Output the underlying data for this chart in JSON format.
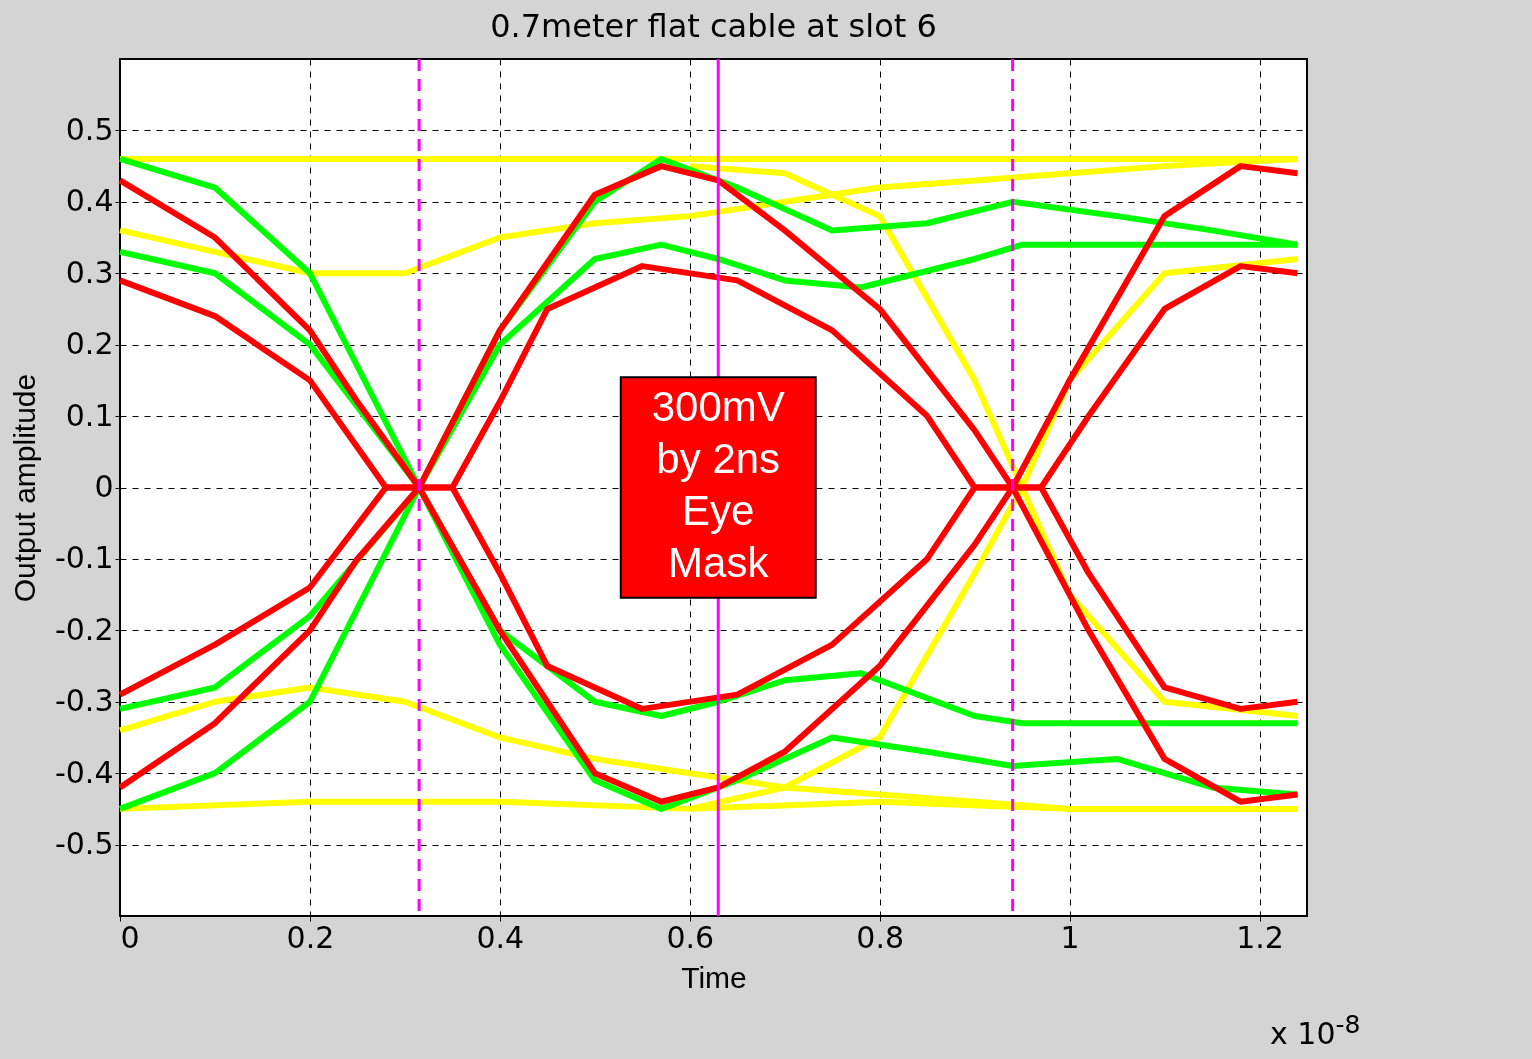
{
  "chart_data": {
    "type": "line",
    "title": "0.7meter flat cable at slot 6",
    "xlabel": "Time",
    "ylabel": "Output amplitude",
    "xlim": [
      0,
      1.25
    ],
    "xticks": [
      0,
      0.2,
      0.4,
      0.6,
      0.8,
      1,
      1.2
    ],
    "ylim": [
      -0.6,
      0.6
    ],
    "yticks": [
      -0.5,
      -0.4,
      -0.3,
      -0.2,
      -0.1,
      0,
      0.1,
      0.2,
      0.3,
      0.4,
      0.5
    ],
    "grid": true,
    "legend": false,
    "marker": "none",
    "line_style": "solid",
    "series": [
      {
        "color": "#ffff00",
        "x": [
          0,
          0.2,
          0.4,
          0.6,
          0.8,
          1.0,
          1.24
        ],
        "values": [
          0.46,
          0.46,
          0.46,
          0.46,
          0.46,
          0.46,
          0.46
        ]
      },
      {
        "color": "#ffff00",
        "x": [
          0,
          0.2,
          0.4,
          0.6,
          0.8,
          1.0,
          1.24
        ],
        "values": [
          -0.45,
          -0.44,
          -0.44,
          -0.45,
          -0.44,
          -0.45,
          -0.45
        ]
      },
      {
        "color": "#ffff00",
        "x": [
          0,
          0.1,
          0.2,
          0.3,
          0.4,
          0.5,
          0.6,
          0.7,
          0.8,
          0.9,
          1.0,
          1.1,
          1.24
        ],
        "values": [
          0.36,
          0.33,
          0.3,
          0.3,
          0.35,
          0.37,
          0.38,
          0.4,
          0.42,
          0.43,
          0.44,
          0.45,
          0.46
        ]
      },
      {
        "color": "#ffff00",
        "x": [
          0,
          0.1,
          0.2,
          0.3,
          0.4,
          0.5,
          0.6,
          0.7,
          0.8,
          0.9,
          1.0,
          1.1,
          1.24
        ],
        "values": [
          -0.34,
          -0.3,
          -0.28,
          -0.3,
          -0.35,
          -0.38,
          -0.4,
          -0.42,
          -0.43,
          -0.44,
          -0.45,
          -0.45,
          -0.45
        ]
      },
      {
        "color": "#ffff00",
        "x": [
          0.6,
          0.7,
          0.8,
          0.9,
          0.95,
          1.0,
          1.1,
          1.24
        ],
        "values": [
          0.45,
          0.44,
          0.38,
          0.15,
          0,
          -0.15,
          -0.3,
          -0.32
        ]
      },
      {
        "color": "#ffff00",
        "x": [
          0.6,
          0.7,
          0.8,
          0.9,
          0.95,
          1.0,
          1.1,
          1.24
        ],
        "values": [
          -0.45,
          -0.42,
          -0.35,
          -0.12,
          0,
          0.15,
          0.3,
          0.32
        ]
      },
      {
        "color": "#00ff00",
        "x": [
          0,
          0.1,
          0.2,
          0.315,
          0.4,
          0.5,
          0.57,
          0.63,
          0.7,
          0.78,
          0.9,
          0.95,
          1.1,
          1.24
        ],
        "values": [
          0.46,
          0.42,
          0.3,
          0,
          -0.2,
          -0.3,
          -0.32,
          -0.3,
          -0.27,
          -0.26,
          -0.32,
          -0.33,
          -0.33,
          -0.33
        ]
      },
      {
        "color": "#00ff00",
        "x": [
          0,
          0.1,
          0.2,
          0.315,
          0.4,
          0.5,
          0.57,
          0.63,
          0.7,
          0.78,
          0.9,
          0.95,
          1.1,
          1.24
        ],
        "values": [
          -0.45,
          -0.4,
          -0.3,
          0,
          0.2,
          0.32,
          0.34,
          0.32,
          0.29,
          0.28,
          0.32,
          0.34,
          0.34,
          0.34
        ]
      },
      {
        "color": "#00ff00",
        "x": [
          0,
          0.1,
          0.2,
          0.315,
          0.4,
          0.5,
          0.57,
          0.65,
          0.75,
          0.85,
          0.94,
          1.05,
          1.15,
          1.24
        ],
        "values": [
          0.33,
          0.3,
          0.2,
          0,
          -0.22,
          -0.41,
          -0.45,
          -0.41,
          -0.35,
          -0.37,
          -0.39,
          -0.38,
          -0.42,
          -0.43
        ]
      },
      {
        "color": "#00ff00",
        "x": [
          0,
          0.1,
          0.2,
          0.315,
          0.4,
          0.5,
          0.57,
          0.65,
          0.75,
          0.85,
          0.94,
          1.05,
          1.15,
          1.24
        ],
        "values": [
          -0.31,
          -0.28,
          -0.18,
          0,
          0.22,
          0.4,
          0.46,
          0.42,
          0.36,
          0.37,
          0.4,
          0.38,
          0.36,
          0.34
        ]
      },
      {
        "color": "#ff0000",
        "x": [
          0,
          0.1,
          0.2,
          0.25,
          0.315,
          0.4,
          0.5,
          0.57,
          0.63,
          0.7,
          0.8,
          0.9,
          0.94,
          1.0,
          1.1,
          1.18,
          1.24
        ],
        "values": [
          0.43,
          0.35,
          0.22,
          0.12,
          0,
          -0.2,
          -0.4,
          -0.44,
          -0.42,
          -0.37,
          -0.25,
          -0.08,
          0,
          0.15,
          0.38,
          0.45,
          0.44
        ]
      },
      {
        "color": "#ff0000",
        "x": [
          0,
          0.1,
          0.2,
          0.25,
          0.315,
          0.4,
          0.5,
          0.57,
          0.63,
          0.7,
          0.8,
          0.9,
          0.94,
          1.02,
          1.1,
          1.18,
          1.24
        ],
        "values": [
          -0.42,
          -0.33,
          -0.2,
          -0.1,
          0,
          0.22,
          0.41,
          0.45,
          0.43,
          0.36,
          0.25,
          0.08,
          0,
          -0.2,
          -0.38,
          -0.44,
          -0.43
        ]
      },
      {
        "color": "#ff0000",
        "x": [
          0,
          0.1,
          0.2,
          0.28,
          0.35,
          0.4,
          0.45,
          0.55,
          0.65,
          0.75,
          0.85,
          0.9,
          0.97,
          1.02,
          1.1,
          1.18,
          1.24
        ],
        "values": [
          0.29,
          0.24,
          0.15,
          0,
          0,
          0.12,
          0.25,
          0.31,
          0.29,
          0.22,
          0.1,
          0,
          0,
          0.1,
          0.25,
          0.31,
          0.3
        ]
      },
      {
        "color": "#ff0000",
        "x": [
          0,
          0.1,
          0.2,
          0.28,
          0.35,
          0.4,
          0.45,
          0.55,
          0.65,
          0.75,
          0.85,
          0.9,
          0.97,
          1.02,
          1.1,
          1.18,
          1.24
        ],
        "values": [
          -0.29,
          -0.22,
          -0.14,
          0,
          0,
          -0.12,
          -0.25,
          -0.31,
          -0.29,
          -0.22,
          -0.1,
          0,
          0,
          -0.12,
          -0.28,
          -0.31,
          -0.3
        ]
      }
    ],
    "ref_lines": [
      {
        "axis": "x",
        "value": 0.315,
        "color": "#ff00ff",
        "line_style": "dashed"
      },
      {
        "axis": "x",
        "value": 0.63,
        "color": "#ff00ff",
        "line_style": "solid"
      },
      {
        "axis": "x",
        "value": 0.94,
        "color": "#ff00ff",
        "line_style": "dashed"
      }
    ],
    "annotations": [
      {
        "text": "300mV\nby 2ns\nEye\nMask",
        "x": 0.63,
        "y": 0
      },
      "x 10$^{-8}$"
    ]
  }
}
